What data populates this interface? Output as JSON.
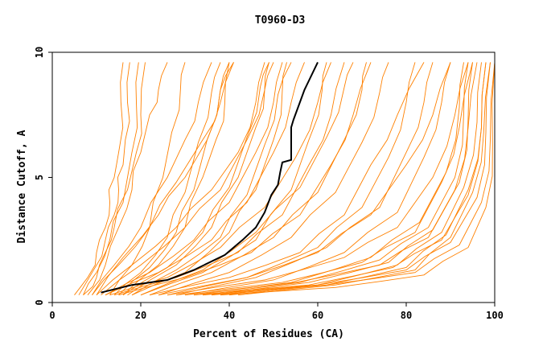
{
  "chart_data": {
    "type": "line",
    "title": "T0960-D3",
    "xlabel": "Percent of Residues (CA)",
    "ylabel": "Distance Cutoff, A",
    "xlim": [
      0,
      100
    ],
    "ylim": [
      0,
      10
    ],
    "xticks": [
      0,
      20,
      40,
      60,
      80,
      100
    ],
    "xtick_labels": [
      "0",
      "20",
      "40",
      "60",
      "80",
      "100"
    ],
    "yticks": [
      0,
      5,
      10
    ],
    "ytick_labels": [
      "0",
      "5",
      "10"
    ],
    "highlight_color": "#000000",
    "series_color": "#ff8000",
    "highlight_series": {
      "name": "highlight",
      "x": [
        11,
        18,
        26,
        32,
        39,
        43,
        46,
        48,
        49.5,
        51,
        51.5,
        52,
        54,
        54,
        54.5,
        57,
        60
      ],
      "y": [
        0.4,
        0.7,
        0.9,
        1.3,
        1.9,
        2.5,
        3,
        3.6,
        4.3,
        4.7,
        5.2,
        5.6,
        5.7,
        7,
        7.3,
        8.5,
        9.6
      ]
    },
    "series": [
      {
        "name": "s01",
        "x": [
          5,
          8,
          10,
          12,
          13,
          14,
          15,
          15.5,
          16
        ],
        "y": [
          0.3,
          1,
          2,
          3,
          4,
          5,
          6,
          8,
          9.6
        ]
      },
      {
        "name": "s02",
        "x": [
          6,
          9,
          12,
          14,
          15,
          16,
          16.5,
          17,
          17.5
        ],
        "y": [
          0.3,
          1.2,
          2.5,
          3.5,
          4.5,
          5.5,
          6.5,
          8,
          9.6
        ]
      },
      {
        "name": "s03",
        "x": [
          7,
          10,
          12,
          14,
          17,
          19,
          20,
          21
        ],
        "y": [
          0.3,
          1,
          2,
          3,
          4.5,
          6,
          7.5,
          9.6
        ]
      },
      {
        "name": "s04",
        "x": [
          7,
          10,
          13,
          16,
          18,
          19,
          19.5
        ],
        "y": [
          0.3,
          1.2,
          2.5,
          4,
          6,
          8,
          9.6
        ]
      },
      {
        "name": "s05",
        "x": [
          8,
          12,
          15,
          18,
          20,
          22,
          24,
          26
        ],
        "y": [
          0.3,
          1.5,
          3,
          4.5,
          6,
          7.5,
          8.5,
          9.6
        ]
      },
      {
        "name": "s06",
        "x": [
          9,
          14,
          20,
          26,
          30,
          33,
          36
        ],
        "y": [
          0.3,
          1.5,
          3,
          5,
          6.5,
          8,
          9.6
        ]
      },
      {
        "name": "s07",
        "x": [
          9,
          15,
          22,
          28,
          34,
          38,
          41
        ],
        "y": [
          0.3,
          1.5,
          3,
          4.8,
          6.5,
          8,
          9.6
        ]
      },
      {
        "name": "s08",
        "x": [
          10,
          16,
          24,
          30,
          35,
          38,
          40
        ],
        "y": [
          0.3,
          1.8,
          3.5,
          5,
          6.5,
          8.5,
          9.6
        ]
      },
      {
        "name": "s09",
        "x": [
          10,
          18,
          28,
          36,
          42,
          46,
          48
        ],
        "y": [
          0.3,
          1.5,
          3,
          4.5,
          6,
          8,
          9.6
        ]
      },
      {
        "name": "s10",
        "x": [
          11,
          20,
          30,
          38,
          44,
          48,
          50
        ],
        "y": [
          0.3,
          1.5,
          3,
          4.5,
          6.5,
          8.5,
          9.6
        ]
      },
      {
        "name": "s11",
        "x": [
          12,
          22,
          32,
          40,
          46,
          50,
          52
        ],
        "y": [
          0.3,
          1.2,
          2.5,
          4,
          6,
          8,
          9.6
        ]
      },
      {
        "name": "s12",
        "x": [
          12,
          24,
          36,
          44,
          50,
          54,
          57
        ],
        "y": [
          0.3,
          1.2,
          2.5,
          4,
          6,
          8,
          9.6
        ]
      },
      {
        "name": "s13",
        "x": [
          13,
          26,
          38,
          48,
          55,
          60,
          63
        ],
        "y": [
          0.3,
          1,
          2.2,
          3.8,
          5.8,
          8,
          9.6
        ]
      },
      {
        "name": "s14",
        "x": [
          14,
          28,
          42,
          52,
          58,
          63,
          66
        ],
        "y": [
          0.3,
          1,
          2,
          3.5,
          5.5,
          7.5,
          9.6
        ]
      },
      {
        "name": "s15",
        "x": [
          15,
          30,
          45,
          56,
          63,
          68,
          72
        ],
        "y": [
          0.3,
          1,
          2,
          3.5,
          5.5,
          7.5,
          9.6
        ]
      },
      {
        "name": "s16",
        "x": [
          16,
          24,
          30,
          34,
          37,
          39,
          40
        ],
        "y": [
          0.3,
          1.5,
          3,
          5,
          6.5,
          8,
          9.6
        ]
      },
      {
        "name": "s17",
        "x": [
          17,
          28,
          36,
          42,
          46,
          48,
          49
        ],
        "y": [
          0.3,
          1.5,
          3,
          5,
          7,
          8.5,
          9.6
        ]
      },
      {
        "name": "s18",
        "x": [
          18,
          30,
          40,
          46,
          50,
          52,
          53
        ],
        "y": [
          0.3,
          1.2,
          2.8,
          4.5,
          6.5,
          8.5,
          9.6
        ]
      },
      {
        "name": "s19",
        "x": [
          20,
          34,
          46,
          54,
          58,
          61,
          62
        ],
        "y": [
          0.3,
          1.2,
          2.5,
          4.5,
          6.5,
          8.5,
          9.6
        ]
      },
      {
        "name": "s20",
        "x": [
          22,
          40,
          56,
          66,
          72,
          78,
          84
        ],
        "y": [
          0.3,
          1,
          2,
          3.5,
          5.5,
          7.5,
          9.6
        ]
      },
      {
        "name": "s21",
        "x": [
          24,
          44,
          60,
          72,
          80,
          86,
          90
        ],
        "y": [
          0.3,
          1,
          2,
          3.5,
          5.5,
          7.5,
          9.6
        ]
      },
      {
        "name": "s22",
        "x": [
          26,
          48,
          66,
          78,
          86,
          91,
          94
        ],
        "y": [
          0.3,
          0.9,
          1.8,
          3,
          5,
          7.5,
          9.6
        ]
      },
      {
        "name": "s23",
        "x": [
          28,
          52,
          70,
          82,
          88,
          92,
          95
        ],
        "y": [
          0.3,
          0.8,
          1.6,
          2.8,
          4.8,
          7,
          9.6
        ]
      },
      {
        "name": "s24",
        "x": [
          30,
          55,
          74,
          85,
          91,
          94,
          96
        ],
        "y": [
          0.3,
          0.8,
          1.5,
          2.6,
          4.5,
          7,
          9.6
        ]
      },
      {
        "name": "s25",
        "x": [
          32,
          58,
          77,
          88,
          94,
          97,
          98
        ],
        "y": [
          0.3,
          0.7,
          1.4,
          2.5,
          4.3,
          7,
          9.6
        ]
      },
      {
        "name": "s26",
        "x": [
          34,
          60,
          80,
          90,
          96,
          98,
          99
        ],
        "y": [
          0.3,
          0.7,
          1.3,
          2.4,
          4.2,
          6.8,
          9.6
        ]
      },
      {
        "name": "s27",
        "x": [
          36,
          62,
          82,
          92,
          97,
          99,
          100
        ],
        "y": [
          0.3,
          0.7,
          1.2,
          2.3,
          4,
          6.5,
          9.6
        ]
      },
      {
        "name": "s28",
        "x": [
          38,
          64,
          84,
          94,
          98,
          99.5,
          100
        ],
        "y": [
          0.3,
          0.6,
          1.1,
          2.2,
          3.8,
          6.3,
          9.6
        ]
      },
      {
        "name": "s29",
        "x": [
          26,
          44,
          60,
          70,
          76,
          80,
          82
        ],
        "y": [
          0.3,
          1,
          2.2,
          3.8,
          5.8,
          8,
          9.6
        ]
      },
      {
        "name": "s30",
        "x": [
          28,
          46,
          62,
          74,
          80,
          84,
          86
        ],
        "y": [
          0.3,
          1,
          2.2,
          3.8,
          6,
          8,
          9.6
        ]
      },
      {
        "name": "s31",
        "x": [
          30,
          50,
          66,
          78,
          84,
          88,
          90
        ],
        "y": [
          0.3,
          0.9,
          2,
          3.6,
          5.8,
          8,
          9.6
        ]
      },
      {
        "name": "s32",
        "x": [
          32,
          54,
          72,
          83,
          89,
          92,
          93
        ],
        "y": [
          0.3,
          0.8,
          1.8,
          3.2,
          5.2,
          7.8,
          9.6
        ]
      },
      {
        "name": "s33",
        "x": [
          34,
          56,
          74,
          85,
          91,
          93,
          94
        ],
        "y": [
          0.3,
          0.8,
          1.7,
          3,
          5,
          7.6,
          9.6
        ]
      },
      {
        "name": "s34",
        "x": [
          36,
          58,
          76,
          86,
          92,
          94,
          95
        ],
        "y": [
          0.3,
          0.8,
          1.6,
          2.9,
          4.8,
          7.4,
          9.6
        ]
      },
      {
        "name": "s35",
        "x": [
          38,
          60,
          78,
          88,
          93,
          96,
          97
        ],
        "y": [
          0.3,
          0.7,
          1.5,
          2.8,
          4.6,
          7.2,
          9.6
        ]
      },
      {
        "name": "s36",
        "x": [
          40,
          62,
          80,
          89,
          94,
          97,
          98
        ],
        "y": [
          0.3,
          0.7,
          1.4,
          2.7,
          4.5,
          7,
          9.6
        ]
      },
      {
        "name": "s37",
        "x": [
          42,
          64,
          82,
          90,
          95,
          97.5,
          99
        ],
        "y": [
          0.3,
          0.7,
          1.3,
          2.6,
          4.4,
          6.8,
          9.6
        ]
      },
      {
        "name": "s38",
        "x": [
          24,
          40,
          54,
          64,
          70,
          74,
          76
        ],
        "y": [
          0.3,
          1.2,
          2.6,
          4.4,
          6.4,
          8.4,
          9.6
        ]
      },
      {
        "name": "s39",
        "x": [
          22,
          36,
          50,
          60,
          66,
          70,
          71
        ],
        "y": [
          0.3,
          1.2,
          2.6,
          4.4,
          6.5,
          8.5,
          9.6
        ]
      },
      {
        "name": "s40",
        "x": [
          20,
          34,
          46,
          56,
          62,
          66,
          68
        ],
        "y": [
          0.3,
          1.3,
          2.8,
          4.6,
          6.6,
          8.6,
          9.6
        ]
      },
      {
        "name": "s41",
        "x": [
          14,
          20,
          26,
          30,
          33,
          36,
          38
        ],
        "y": [
          0.3,
          1.2,
          2.6,
          4.4,
          6.4,
          8.4,
          9.6
        ]
      },
      {
        "name": "s42",
        "x": [
          15,
          22,
          28,
          32,
          35,
          38,
          41
        ],
        "y": [
          0.3,
          1.4,
          2.8,
          4.5,
          6.5,
          8.5,
          9.6
        ]
      },
      {
        "name": "s43",
        "x": [
          16,
          26,
          34,
          40,
          44,
          47,
          49
        ],
        "y": [
          0.3,
          1.4,
          2.8,
          4.6,
          6.6,
          8.6,
          9.6
        ]
      },
      {
        "name": "s44",
        "x": [
          18,
          28,
          38,
          44,
          48,
          51,
          54
        ],
        "y": [
          0.3,
          1.3,
          2.6,
          4.3,
          6.3,
          8.3,
          9.6
        ]
      },
      {
        "name": "s45",
        "x": [
          13,
          18,
          22,
          25,
          27,
          29,
          30
        ],
        "y": [
          0.3,
          1.5,
          3,
          5,
          6.8,
          8.6,
          9.6
        ]
      }
    ]
  }
}
